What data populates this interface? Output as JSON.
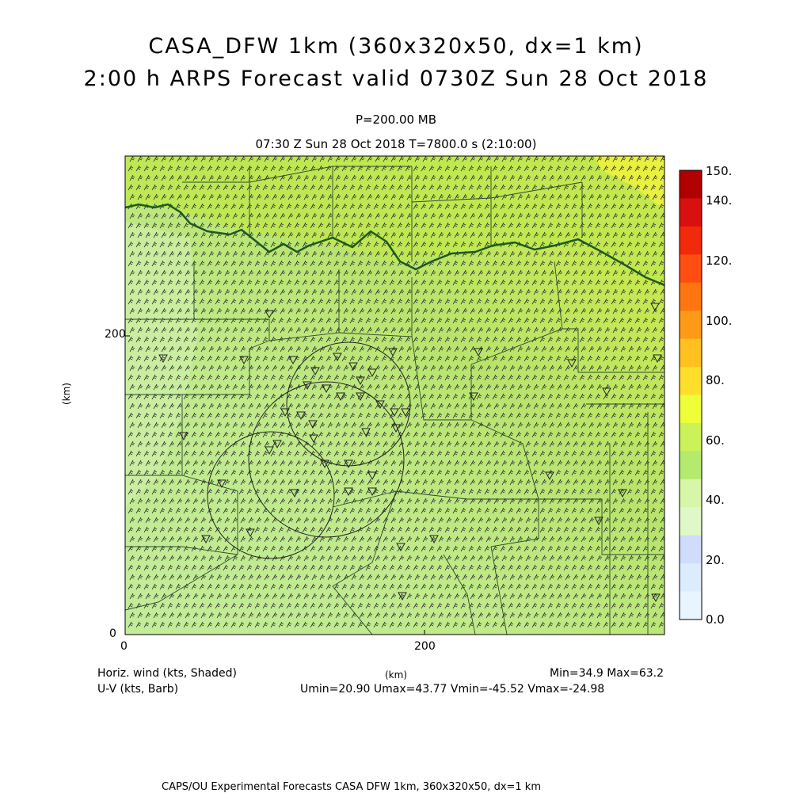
{
  "header": {
    "title_line1": "CASA_DFW 1km (360x320x50, dx=1 km)",
    "title_line2": "2:00 h ARPS Forecast valid 0730Z Sun 28 Oct 2018",
    "pressure_level": "P=200.00 MB",
    "valid_time": "07:30 Z Sun 28 Oct 2018   T=7800.0 s (2:10:00)"
  },
  "axes": {
    "y_label": "(km)",
    "x_label": "(km)",
    "x_ticks": [
      "0",
      "200"
    ],
    "y_ticks": [
      "0",
      "200"
    ]
  },
  "colorbar": {
    "labels": [
      "150.",
      "140.",
      "120.",
      "100.",
      "80.",
      "60.",
      "40.",
      "20.",
      "0.0"
    ],
    "colors": [
      "#b00000",
      "#d81010",
      "#f02a0a",
      "#ff4e10",
      "#ff7510",
      "#ff9a18",
      "#ffc020",
      "#ffde2c",
      "#eeff3a",
      "#ccf25a",
      "#b4ea6e",
      "#d8f6a8",
      "#e0f8c8",
      "#d0dcfa",
      "#dcecfc",
      "#e8f4fe"
    ]
  },
  "footer": {
    "left_line1": "Horiz. wind (kts, Shaded)",
    "left_line2": "U-V (kts, Barb)",
    "min_max": "Min=34.9 Max=63.2",
    "uv_stats": "Umin=20.90 Umax=43.77 Vmin=-45.52 Vmax=-24.98",
    "credit": "CAPS/OU Experimental Forecasts  CASA DFW 1km, 360x320x50, dx=1 km"
  },
  "colors": {
    "field_low": "#c8eea2",
    "field_mid": "#b6e46e",
    "field_high": "#c2e84c",
    "field_max": "#eef03e",
    "contour": "#1e5a1e",
    "borders": "#2a4a2a"
  }
}
